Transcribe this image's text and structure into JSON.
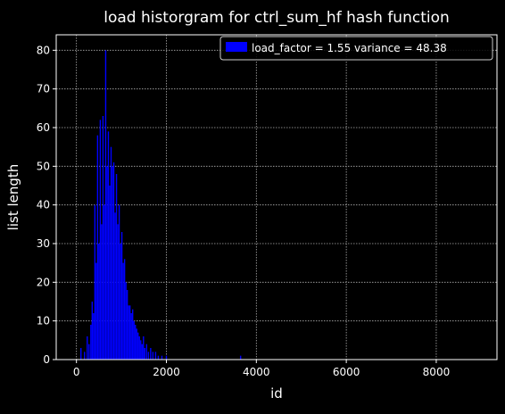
{
  "chart_data": {
    "type": "bar",
    "title": "load historgram for ctrl_sum_hf hash function",
    "xlabel": "id",
    "ylabel": "list length",
    "xlim": [
      -450,
      9350
    ],
    "ylim": [
      0,
      84
    ],
    "xticks": [
      0,
      2000,
      4000,
      6000,
      8000
    ],
    "yticks": [
      0,
      10,
      20,
      30,
      40,
      50,
      60,
      70,
      80
    ],
    "grid": true,
    "legend": {
      "placement": "top-right",
      "label": "load_factor = 1.55 variance = 48.38"
    },
    "colors": {
      "background": "#000000",
      "series": "#0000ff",
      "axes": "#ffffff",
      "grid": "#b0b0b0"
    },
    "series": [
      {
        "name": "load_factor = 1.55 variance = 48.38",
        "x": [
          100,
          180,
          240,
          280,
          320,
          350,
          380,
          410,
          440,
          470,
          500,
          530,
          560,
          590,
          620,
          650,
          680,
          710,
          740,
          770,
          800,
          830,
          860,
          890,
          920,
          950,
          980,
          1010,
          1040,
          1070,
          1100,
          1130,
          1160,
          1190,
          1220,
          1250,
          1280,
          1310,
          1340,
          1370,
          1400,
          1430,
          1460,
          1490,
          1520,
          1560,
          1600,
          1650,
          1700,
          1760,
          1820,
          1900,
          2000,
          3650
        ],
        "values": [
          3,
          2,
          6,
          4,
          9,
          15,
          12,
          40,
          25,
          58,
          30,
          62,
          35,
          63,
          40,
          80,
          50,
          59,
          45,
          55,
          50,
          51,
          38,
          48,
          35,
          40,
          30,
          33,
          25,
          26,
          20,
          18,
          14,
          14,
          12,
          13,
          10,
          9,
          8,
          7,
          6,
          5,
          4,
          6,
          3,
          4,
          2,
          3,
          2,
          2,
          1,
          1,
          1,
          1
        ]
      }
    ]
  }
}
